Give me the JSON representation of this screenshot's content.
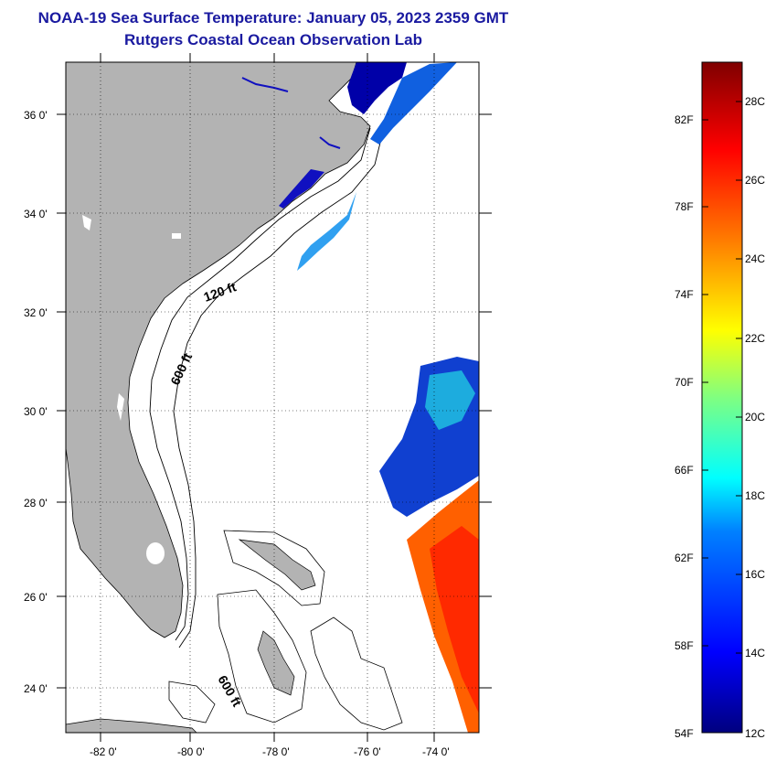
{
  "header": {
    "title": "NOAA-19 Sea Surface Temperature:  January 05, 2023 2359 GMT",
    "subtitle": "Rutgers Coastal Ocean Observation Lab"
  },
  "map": {
    "lat_labels": [
      "36 0'",
      "34 0'",
      "32 0'",
      "30 0'",
      "28 0'",
      "26 0'",
      "24 0'"
    ],
    "lon_labels": [
      "-82 0'",
      "-80 0'",
      "-78 0'",
      "-76 0'",
      "-74 0'"
    ],
    "contour_labels": [
      "120 ft",
      "600 ft",
      "600 ft"
    ],
    "colors": {
      "land": "#b3b3b3",
      "ocean": "#ffffff",
      "grid": "#000000"
    }
  },
  "colorbar": {
    "fahrenheit_labels": [
      "82F",
      "78F",
      "74F",
      "70F",
      "66F",
      "62F",
      "58F",
      "54F"
    ],
    "celsius_labels": [
      "28C",
      "26C",
      "24C",
      "22C",
      "20C",
      "18C",
      "16C",
      "14C",
      "12C"
    ],
    "colormap": [
      "#00007f",
      "#0000ff",
      "#0080ff",
      "#00ffff",
      "#80ff80",
      "#ffff00",
      "#ff8000",
      "#ff0000",
      "#7f0000"
    ]
  }
}
